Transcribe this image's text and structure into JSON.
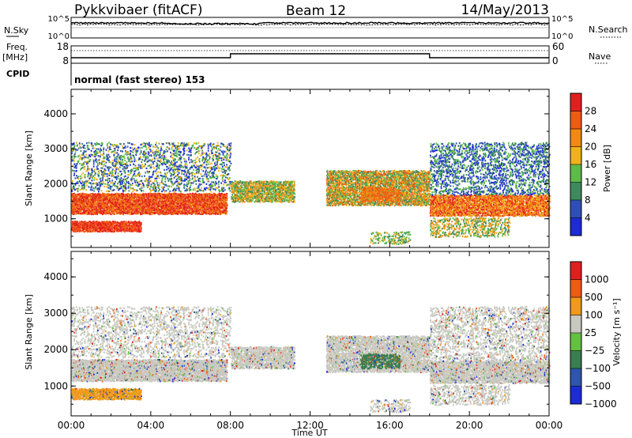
{
  "header": {
    "station": "Pykkvibaer (fitACF)",
    "beam": "Beam 12",
    "date": "14/May/2013"
  },
  "top_panels": {
    "nsky_label": "N.Sky",
    "nsky_ticks": [
      "10^5",
      "10^0"
    ],
    "nsearch_label": "N.Search",
    "freq_label": "Freq.",
    "freq_unit": "[MHz]",
    "freq_ticks": [
      "18",
      "8"
    ],
    "nave_label": "Nave",
    "nave_ticks": [
      "60",
      "0"
    ],
    "cpid_label": "CPID",
    "cpid_text": "normal (fast stereo) 153"
  },
  "colors": {
    "power": [
      "#1c2bd6",
      "#2f4fb8",
      "#3e8a5e",
      "#5dbb4a",
      "#f0b21c",
      "#f08a12",
      "#ef5a14",
      "#e21f1f"
    ],
    "velocity": [
      "#1c2bd6",
      "#2d56ac",
      "#3a7d52",
      "#63c040",
      "#c8c8c0",
      "#ef9a1a",
      "#ef5a14",
      "#e21f1f"
    ]
  },
  "chart_data": [
    {
      "type": "heatmap",
      "name": "power",
      "xlabel": "",
      "ylabel": "Slant Range [km]",
      "xlim": [
        0,
        24
      ],
      "ylim": [
        180,
        4700
      ],
      "yticks": [
        "1000",
        "2000",
        "3000",
        "4000"
      ],
      "colorbar_label": "Power [dB]",
      "colorbar_ticks": [
        "4",
        "8",
        "12",
        "16",
        "20",
        "24",
        "28"
      ]
    },
    {
      "type": "heatmap",
      "name": "velocity",
      "xlabel": "Time UT",
      "ylabel": "Slant Range [km]",
      "xlim": [
        0,
        24
      ],
      "ylim": [
        180,
        4700
      ],
      "yticks": [
        "1000",
        "2000",
        "3000",
        "4000"
      ],
      "xticks": [
        "00:00",
        "04:00",
        "08:00",
        "12:00",
        "16:00",
        "20:00",
        "00:00"
      ],
      "colorbar_label": "Velocity [m s⁻¹]",
      "colorbar_ticks": [
        "1000",
        "500",
        "100",
        "25",
        "−25",
        "−100",
        "−500",
        "−1000"
      ]
    }
  ]
}
